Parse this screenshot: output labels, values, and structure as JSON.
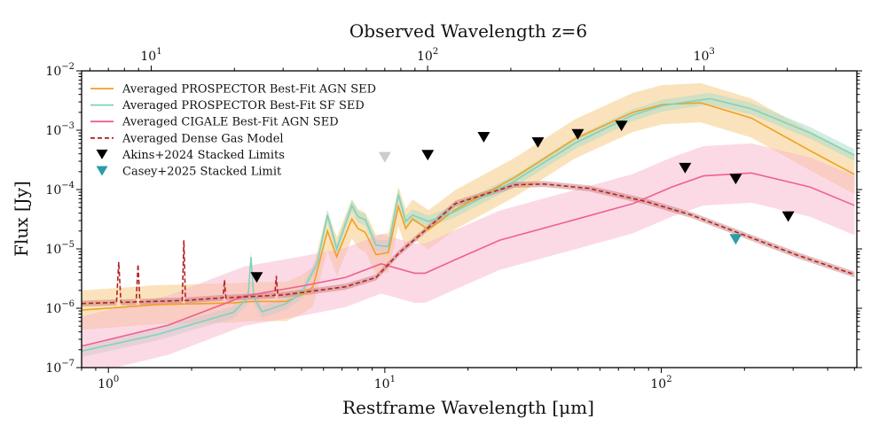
{
  "chart_data": {
    "type": "line",
    "xscale": "log",
    "yscale": "log",
    "xlabel": "Restframe Wavelength [μm]",
    "ylabel": "Flux [Jy]",
    "top_xlabel": "Observed Wavelength z=6",
    "redshift": 6,
    "xlim": [
      0.8,
      510
    ],
    "ylim": [
      1e-07,
      0.01
    ],
    "x_tick_labels": [
      {
        "base": "10",
        "exp": "0",
        "value": 1
      },
      {
        "base": "10",
        "exp": "1",
        "value": 10
      },
      {
        "base": "10",
        "exp": "2",
        "value": 100
      }
    ],
    "top_tick_labels": [
      {
        "base": "10",
        "exp": "1",
        "value": 10
      },
      {
        "base": "10",
        "exp": "2",
        "value": 100
      },
      {
        "base": "10",
        "exp": "3",
        "value": 1000
      }
    ],
    "y_tick_labels": [
      {
        "base": "10",
        "exp": "−2",
        "value": 0.01
      },
      {
        "base": "10",
        "exp": "−3",
        "value": 0.001
      },
      {
        "base": "10",
        "exp": "−4",
        "value": 0.0001
      },
      {
        "base": "10",
        "exp": "−5",
        "value": 1e-05
      },
      {
        "base": "10",
        "exp": "−6",
        "value": 1e-06
      },
      {
        "base": "10",
        "exp": "−7",
        "value": 1e-07
      }
    ],
    "legend_position": "top-left",
    "series": [
      {
        "name": "Averaged PROSPECTOR Best-Fit AGN SED",
        "color": "#f0a020",
        "band_color": "#f5c77a",
        "band_dex": 0.33,
        "style": "solid",
        "points": [
          [
            0.8,
            9.3e-07
          ],
          [
            1.5,
            1.15e-06
          ],
          [
            2.83,
            1.23e-06
          ],
          [
            3.3,
            1.3e-06
          ],
          [
            4.4,
            1.3e-06
          ],
          [
            5.0,
            1.7e-06
          ],
          [
            5.5,
            2.3e-06
          ],
          [
            6.2,
            2e-05
          ],
          [
            6.7,
            7.4e-06
          ],
          [
            7.6,
            3.2e-05
          ],
          [
            8.0,
            2.2e-05
          ],
          [
            8.5,
            1.9e-05
          ],
          [
            9.3,
            8e-06
          ],
          [
            10.3,
            8.7e-06
          ],
          [
            11.2,
            5.2e-05
          ],
          [
            11.9,
            2.2e-05
          ],
          [
            12.6,
            3.2e-05
          ],
          [
            14.4,
            2.1e-05
          ],
          [
            18,
            4.6e-05
          ],
          [
            29.5,
            0.00016
          ],
          [
            48.6,
            0.00071
          ],
          [
            79,
            0.002
          ],
          [
            101,
            0.0027
          ],
          [
            139,
            0.0029
          ],
          [
            212,
            0.0016
          ],
          [
            346,
            0.00045
          ],
          [
            500,
            0.00018
          ]
        ]
      },
      {
        "name": "Averaged PROSPECTOR Best-Fit SF SED",
        "color": "#7fd3bd",
        "band_color": "#a8dcc8",
        "band_dex": 0.1,
        "style": "solid",
        "points": [
          [
            0.8,
            1.9e-07
          ],
          [
            1.5,
            3.6e-07
          ],
          [
            2.83,
            8.5e-07
          ],
          [
            3.2,
            1.5e-06
          ],
          [
            3.28,
            7.3e-06
          ],
          [
            3.36,
            1.5e-06
          ],
          [
            3.6,
            8.7e-07
          ],
          [
            4.4,
            1.2e-06
          ],
          [
            5.0,
            1.8e-06
          ],
          [
            5.7,
            5.8e-06
          ],
          [
            6.2,
            3.7e-05
          ],
          [
            6.7,
            1e-05
          ],
          [
            7.6,
            5.4e-05
          ],
          [
            8.0,
            3.5e-05
          ],
          [
            8.5,
            3.1e-05
          ],
          [
            9.3,
            1.15e-05
          ],
          [
            10.3,
            1.1e-05
          ],
          [
            11.2,
            8.2e-05
          ],
          [
            11.9,
            2.9e-05
          ],
          [
            12.6,
            3.7e-05
          ],
          [
            14.4,
            2.9e-05
          ],
          [
            18,
            4.3e-05
          ],
          [
            29.5,
            0.00014
          ],
          [
            48.6,
            0.0006
          ],
          [
            79,
            0.0018
          ],
          [
            101,
            0.0026
          ],
          [
            150,
            0.0034
          ],
          [
            212,
            0.0023
          ],
          [
            346,
            0.0009
          ],
          [
            500,
            0.00038
          ]
        ]
      },
      {
        "name": "Averaged CIGALE Best-Fit AGN SED",
        "color": "#f0608c",
        "band_color": "#f7b6cb",
        "band_dex": 0.5,
        "style": "solid",
        "points": [
          [
            0.8,
            2.3e-07
          ],
          [
            1.65,
            5.2e-07
          ],
          [
            3.1,
            1.6e-06
          ],
          [
            5.1,
            2.4e-06
          ],
          [
            7.2,
            3.3e-06
          ],
          [
            9.7,
            5.6e-06
          ],
          [
            12.8,
            3.9e-06
          ],
          [
            14,
            3.9e-06
          ],
          [
            18,
            6.6e-06
          ],
          [
            26,
            1.4e-05
          ],
          [
            48.6,
            3.1e-05
          ],
          [
            79,
            5.8e-05
          ],
          [
            109,
            0.00011
          ],
          [
            142,
            0.00017
          ],
          [
            212,
            0.00019
          ],
          [
            346,
            0.00011
          ],
          [
            500,
            5.4e-05
          ]
        ]
      },
      {
        "name": "Averaged Dense Gas Model",
        "color": "#b22222",
        "band_color": "#c87a7a",
        "band_dex": 0.05,
        "style": "dashed",
        "points": [
          [
            0.8,
            1.2e-06
          ],
          [
            1.07,
            1.25e-06
          ],
          [
            1.09,
            6e-06
          ],
          [
            1.11,
            1.25e-06
          ],
          [
            1.26,
            1.28e-06
          ],
          [
            1.28,
            5.5e-06
          ],
          [
            1.3,
            1.28e-06
          ],
          [
            1.85,
            1.35e-06
          ],
          [
            1.875,
            1.4e-05
          ],
          [
            1.9,
            1.35e-06
          ],
          [
            2.1,
            1.4e-06
          ],
          [
            2.6,
            1.5e-06
          ],
          [
            2.63,
            3e-06
          ],
          [
            2.66,
            1.5e-06
          ],
          [
            4.0,
            1.65e-06
          ],
          [
            4.05,
            3.5e-06
          ],
          [
            4.1,
            1.65e-06
          ],
          [
            4.4,
            1.7e-06
          ],
          [
            7.2,
            2.3e-06
          ],
          [
            9.3,
            3.3e-06
          ],
          [
            11.3,
            8.7e-06
          ],
          [
            14.4,
            2.3e-05
          ],
          [
            18,
            5.8e-05
          ],
          [
            29.5,
            0.00012
          ],
          [
            37.6,
            0.000124
          ],
          [
            54.6,
            0.000105
          ],
          [
            89,
            6.2e-05
          ],
          [
            129,
            3.7e-05
          ],
          [
            188,
            1.9e-05
          ],
          [
            307,
            8e-06
          ],
          [
            500,
            3.7e-06
          ]
        ]
      }
    ],
    "limits": [
      {
        "name": "Akins+2024 Stacked Limits",
        "color": "#000000",
        "marker": "down-triangle",
        "points": [
          [
            3.44,
            3.3e-06
          ],
          [
            10,
            0.00035
          ],
          [
            14.3,
            0.00038
          ],
          [
            22.8,
            0.00076
          ],
          [
            35.8,
            0.00062
          ],
          [
            49.9,
            0.00085
          ],
          [
            71.8,
            0.00118
          ],
          [
            122,
            0.00023
          ],
          [
            186,
            0.00015
          ],
          [
            288,
            3.5e-05
          ]
        ]
      },
      {
        "name": "Casey+2025 Stacked Limit",
        "color": "#2a9da5",
        "marker": "down-triangle",
        "points": [
          [
            186,
            1.45e-05
          ]
        ]
      }
    ]
  }
}
